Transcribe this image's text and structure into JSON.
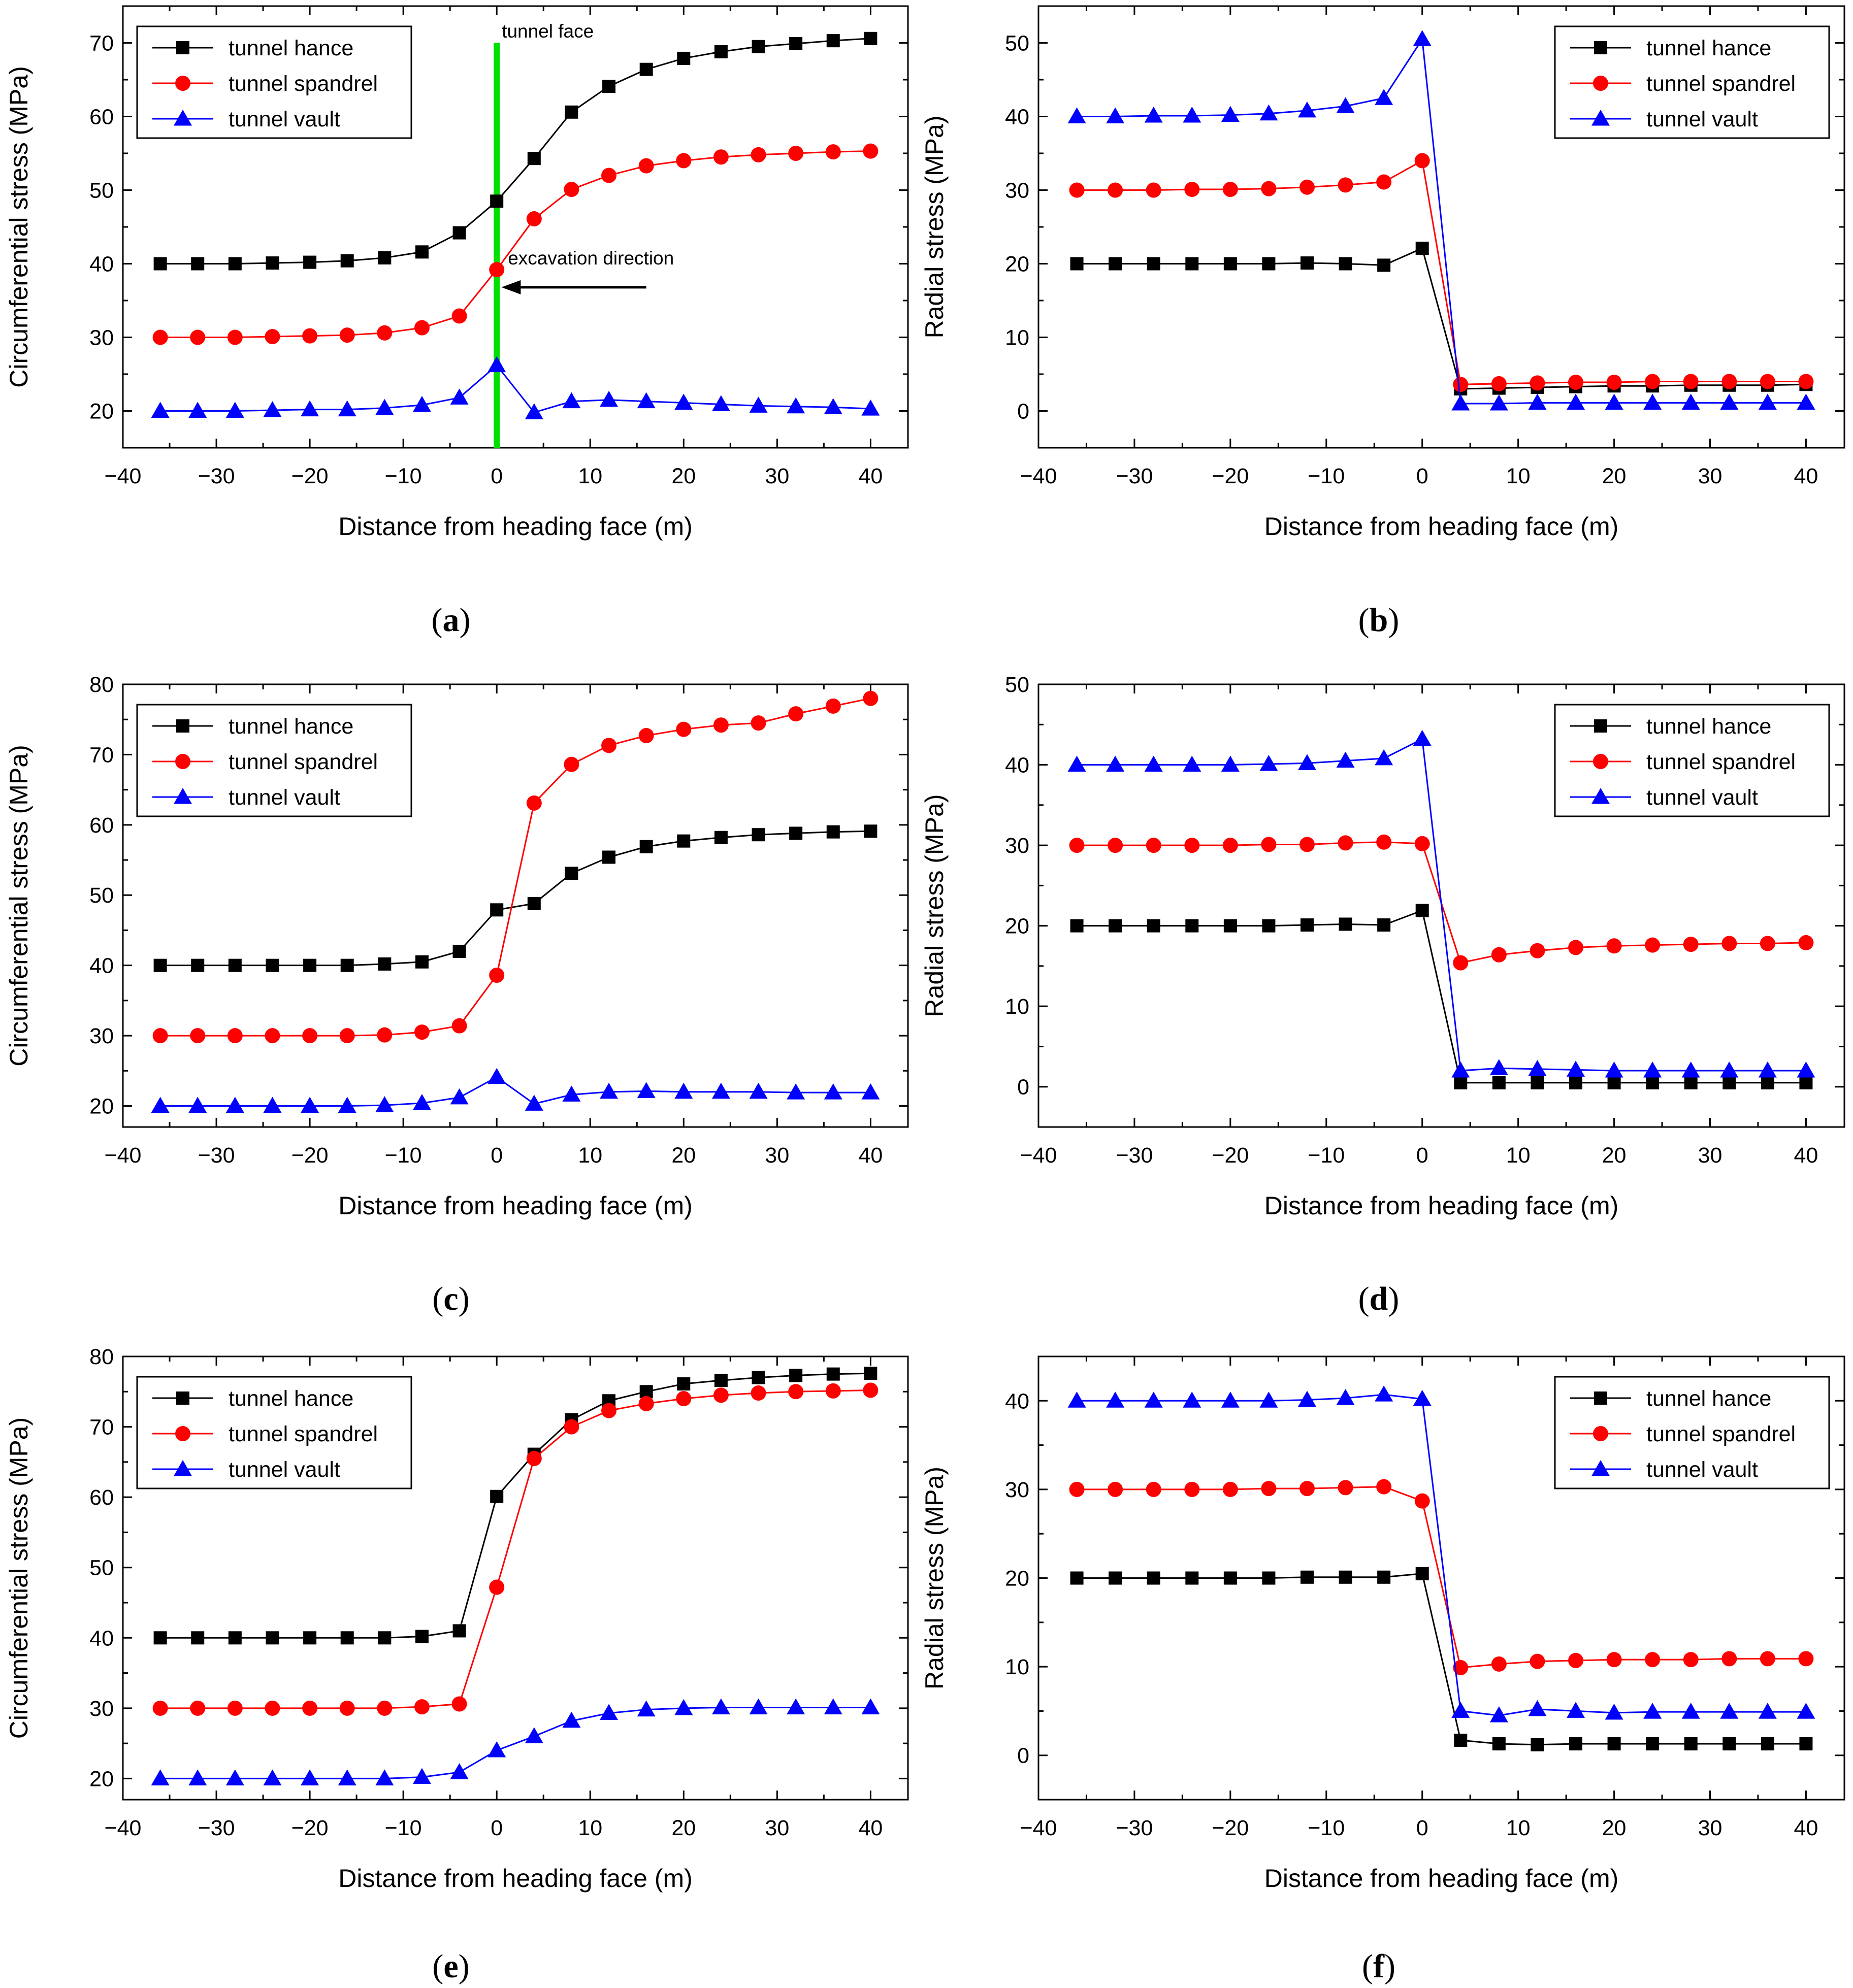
{
  "colors": {
    "hance": "#000000",
    "spandrel": "#ff0000",
    "vault": "#0000ff",
    "tunnel_face_line": "#00e000"
  },
  "chart_data": [
    {
      "id": "a",
      "type": "line",
      "caption": "a",
      "xlabel": "Distance from heading face (m)",
      "ylabel": "Circumferential stress (MPa)",
      "xlim": [
        -40,
        44
      ],
      "ylim": [
        15,
        75
      ],
      "xticks": [
        -40,
        -30,
        -20,
        -10,
        0,
        10,
        20,
        30,
        40
      ],
      "xtick_labels": [
        "−40",
        "−30",
        "−20",
        "−10",
        "0",
        "10",
        "20",
        "30",
        "40"
      ],
      "yticks": [
        20,
        30,
        40,
        50,
        60,
        70
      ],
      "ytick_labels": [
        "20",
        "30",
        "40",
        "50",
        "60",
        "70"
      ],
      "legend": "top-left",
      "x": [
        -36,
        -32,
        -28,
        -24,
        -20,
        -16,
        -12,
        -8,
        -4,
        0,
        4,
        8,
        12,
        16,
        20,
        24,
        28,
        32,
        36,
        40
      ],
      "series": [
        {
          "name": "tunnel hance",
          "marker": "square",
          "color": "#000000",
          "values": [
            40,
            40,
            40,
            40.1,
            40.2,
            40.4,
            40.8,
            41.6,
            44.2,
            48.5,
            54.3,
            60.6,
            64.1,
            66.4,
            67.9,
            68.8,
            69.5,
            69.9,
            70.3,
            70.6
          ]
        },
        {
          "name": "tunnel  spandrel",
          "marker": "circle",
          "color": "#ff0000",
          "values": [
            30,
            30,
            30,
            30.1,
            30.2,
            30.3,
            30.6,
            31.3,
            32.9,
            39.2,
            46.1,
            50.1,
            52,
            53.3,
            54,
            54.5,
            54.8,
            55,
            55.2,
            55.3
          ]
        },
        {
          "name": "tunnel vault",
          "marker": "triangle",
          "color": "#0000ff",
          "values": [
            20,
            20,
            20,
            20.1,
            20.2,
            20.2,
            20.4,
            20.8,
            21.8,
            26.2,
            19.8,
            21.3,
            21.5,
            21.3,
            21.1,
            20.9,
            20.7,
            20.6,
            20.5,
            20.3
          ]
        }
      ],
      "annotations": {
        "tunnel_face_label": "tunnel face",
        "tunnel_face_x": 0,
        "tunnel_face_ytop": 70,
        "excavation_label": "excavation direction",
        "arrow_from_x": 16,
        "arrow_to_x": 0.5,
        "arrow_y": 36.8
      }
    },
    {
      "id": "b",
      "type": "line",
      "caption": "b",
      "xlabel": "Distance from heading face (m)",
      "ylabel": "Radial stress (MPa)",
      "xlim": [
        -40,
        44
      ],
      "ylim": [
        -5,
        55
      ],
      "xticks": [
        -40,
        -30,
        -20,
        -10,
        0,
        10,
        20,
        30,
        40
      ],
      "xtick_labels": [
        "−40",
        "−30",
        "−20",
        "−10",
        "0",
        "10",
        "20",
        "30",
        "40"
      ],
      "yticks": [
        0,
        10,
        20,
        30,
        40,
        50
      ],
      "ytick_labels": [
        "0",
        "10",
        "20",
        "30",
        "40",
        "50"
      ],
      "legend": "top-right",
      "x": [
        -36,
        -32,
        -28,
        -24,
        -20,
        -16,
        -12,
        -8,
        -4,
        0,
        4,
        8,
        12,
        16,
        20,
        24,
        28,
        32,
        36,
        40
      ],
      "series": [
        {
          "name": "tunnel hance",
          "marker": "square",
          "color": "#000000",
          "values": [
            20,
            20,
            20,
            20,
            20,
            20,
            20.1,
            20,
            19.8,
            22.1,
            3,
            3.1,
            3.2,
            3.3,
            3.4,
            3.4,
            3.5,
            3.5,
            3.5,
            3.6
          ]
        },
        {
          "name": "tunnel  spandrel",
          "marker": "circle",
          "color": "#ff0000",
          "values": [
            30,
            30,
            30,
            30.1,
            30.1,
            30.2,
            30.4,
            30.7,
            31.1,
            34,
            3.6,
            3.7,
            3.8,
            3.9,
            3.9,
            4,
            4,
            4,
            4,
            4
          ]
        },
        {
          "name": "tunnel vault",
          "marker": "triangle",
          "color": "#0000ff",
          "values": [
            40,
            40,
            40.1,
            40.1,
            40.2,
            40.4,
            40.8,
            41.4,
            42.5,
            50.5,
            1,
            1,
            1.1,
            1.1,
            1.1,
            1.1,
            1.1,
            1.1,
            1.1,
            1.1
          ]
        }
      ]
    },
    {
      "id": "c",
      "type": "line",
      "caption": "c",
      "xlabel": "Distance from heading face (m)",
      "ylabel": "Circumferential stress (MPa)",
      "xlim": [
        -40,
        44
      ],
      "ylim": [
        17,
        80
      ],
      "xticks": [
        -40,
        -30,
        -20,
        -10,
        0,
        10,
        20,
        30,
        40
      ],
      "xtick_labels": [
        "−40",
        "−30",
        "−20",
        "−10",
        "0",
        "10",
        "20",
        "30",
        "40"
      ],
      "yticks": [
        20,
        30,
        40,
        50,
        60,
        70,
        80
      ],
      "ytick_labels": [
        "20",
        "30",
        "40",
        "50",
        "60",
        "70",
        "80"
      ],
      "legend": "top-left",
      "x": [
        -36,
        -32,
        -28,
        -24,
        -20,
        -16,
        -12,
        -8,
        -4,
        0,
        4,
        8,
        12,
        16,
        20,
        24,
        28,
        32,
        36,
        40
      ],
      "series": [
        {
          "name": "tunnel hance",
          "marker": "square",
          "color": "#000000",
          "values": [
            40,
            40,
            40,
            40,
            40,
            40,
            40.2,
            40.5,
            42,
            47.9,
            48.8,
            53.1,
            55.4,
            56.9,
            57.7,
            58.2,
            58.6,
            58.8,
            59,
            59.1
          ]
        },
        {
          "name": "tunnel  spandrel",
          "marker": "circle",
          "color": "#ff0000",
          "values": [
            30,
            30,
            30,
            30,
            30,
            30,
            30.1,
            30.5,
            31.4,
            38.6,
            63.1,
            68.6,
            71.3,
            72.7,
            73.6,
            74.2,
            74.5,
            75.8,
            76.9,
            78
          ]
        },
        {
          "name": "tunnel vault",
          "marker": "triangle",
          "color": "#0000ff",
          "values": [
            20,
            20,
            20,
            20,
            20,
            20,
            20.1,
            20.4,
            21.2,
            24.1,
            20.3,
            21.6,
            22,
            22.1,
            22,
            22,
            22,
            21.9,
            21.9,
            21.9
          ]
        }
      ]
    },
    {
      "id": "d",
      "type": "line",
      "caption": "d",
      "xlabel": "Distance from heading face (m)",
      "ylabel": "Radial stress (MPa)",
      "xlim": [
        -40,
        44
      ],
      "ylim": [
        -5,
        50
      ],
      "xticks": [
        -40,
        -30,
        -20,
        -10,
        0,
        10,
        20,
        30,
        40
      ],
      "xtick_labels": [
        "−40",
        "−30",
        "−20",
        "−10",
        "0",
        "10",
        "20",
        "30",
        "40"
      ],
      "yticks": [
        0,
        10,
        20,
        30,
        40,
        50
      ],
      "ytick_labels": [
        "0",
        "10",
        "20",
        "30",
        "40",
        "50"
      ],
      "legend": "top-right",
      "x": [
        -36,
        -32,
        -28,
        -24,
        -20,
        -16,
        -12,
        -8,
        -4,
        0,
        4,
        8,
        12,
        16,
        20,
        24,
        28,
        32,
        36,
        40
      ],
      "series": [
        {
          "name": "tunnel hance",
          "marker": "square",
          "color": "#000000",
          "values": [
            20,
            20,
            20,
            20,
            20,
            20,
            20.1,
            20.2,
            20.1,
            21.9,
            0.5,
            0.5,
            0.5,
            0.5,
            0.5,
            0.5,
            0.5,
            0.5,
            0.5,
            0.5
          ]
        },
        {
          "name": "tunnel  spandrel",
          "marker": "circle",
          "color": "#ff0000",
          "values": [
            30,
            30,
            30,
            30,
            30,
            30.1,
            30.1,
            30.3,
            30.4,
            30.2,
            15.4,
            16.4,
            16.9,
            17.3,
            17.5,
            17.6,
            17.7,
            17.8,
            17.8,
            17.9
          ]
        },
        {
          "name": "tunnel vault",
          "marker": "triangle",
          "color": "#0000ff",
          "values": [
            40,
            40,
            40,
            40,
            40,
            40.1,
            40.2,
            40.5,
            40.8,
            43.2,
            2,
            2.3,
            2.2,
            2.1,
            2,
            2,
            2,
            2,
            2,
            2
          ]
        }
      ]
    },
    {
      "id": "e",
      "type": "line",
      "caption": "e",
      "xlabel": "Distance from heading face (m)",
      "ylabel": "Circumferential stress (MPa)",
      "xlim": [
        -40,
        44
      ],
      "ylim": [
        17,
        80
      ],
      "xticks": [
        -40,
        -30,
        -20,
        -10,
        0,
        10,
        20,
        30,
        40
      ],
      "xtick_labels": [
        "−40",
        "−30",
        "−20",
        "−10",
        "0",
        "10",
        "20",
        "30",
        "40"
      ],
      "yticks": [
        20,
        30,
        40,
        50,
        60,
        70,
        80
      ],
      "ytick_labels": [
        "20",
        "30",
        "40",
        "50",
        "60",
        "70",
        "80"
      ],
      "legend": "top-left",
      "x": [
        -36,
        -32,
        -28,
        -24,
        -20,
        -16,
        -12,
        -8,
        -4,
        0,
        4,
        8,
        12,
        16,
        20,
        24,
        28,
        32,
        36,
        40
      ],
      "series": [
        {
          "name": "tunnel hance",
          "marker": "square",
          "color": "#000000",
          "values": [
            40,
            40,
            40,
            40,
            40,
            40,
            40,
            40.2,
            41,
            60.1,
            66.1,
            71,
            73.7,
            75,
            76.1,
            76.6,
            77,
            77.3,
            77.5,
            77.6
          ]
        },
        {
          "name": "tunnel  spandrel",
          "marker": "circle",
          "color": "#ff0000",
          "values": [
            30,
            30,
            30,
            30,
            30,
            30,
            30,
            30.2,
            30.6,
            47.2,
            65.5,
            70,
            72.3,
            73.3,
            74,
            74.5,
            74.8,
            75,
            75.1,
            75.2
          ]
        },
        {
          "name": "tunnel vault",
          "marker": "triangle",
          "color": "#0000ff",
          "values": [
            20,
            20,
            20,
            20,
            20,
            20,
            20,
            20.2,
            20.9,
            24,
            26,
            28.2,
            29.3,
            29.8,
            30,
            30.1,
            30.1,
            30.1,
            30.1,
            30.1
          ]
        }
      ]
    },
    {
      "id": "f",
      "type": "line",
      "caption": "f",
      "xlabel": "Distance from heading face (m)",
      "ylabel": "Radial stress (MPa)",
      "xlim": [
        -40,
        44
      ],
      "ylim": [
        -5,
        45
      ],
      "xticks": [
        -40,
        -30,
        -20,
        -10,
        0,
        10,
        20,
        30,
        40
      ],
      "xtick_labels": [
        "−40",
        "−30",
        "−20",
        "−10",
        "0",
        "10",
        "20",
        "30",
        "40"
      ],
      "yticks": [
        0,
        10,
        20,
        30,
        40
      ],
      "ytick_labels": [
        "0",
        "10",
        "20",
        "30",
        "40"
      ],
      "legend": "top-right",
      "x": [
        -36,
        -32,
        -28,
        -24,
        -20,
        -16,
        -12,
        -8,
        -4,
        0,
        4,
        8,
        12,
        16,
        20,
        24,
        28,
        32,
        36,
        40
      ],
      "series": [
        {
          "name": "tunnel hance",
          "marker": "square",
          "color": "#000000",
          "values": [
            20,
            20,
            20,
            20,
            20,
            20,
            20.1,
            20.1,
            20.1,
            20.5,
            1.7,
            1.3,
            1.2,
            1.3,
            1.3,
            1.3,
            1.3,
            1.3,
            1.3,
            1.3
          ]
        },
        {
          "name": "tunnel  spandrel",
          "marker": "circle",
          "color": "#ff0000",
          "values": [
            30,
            30,
            30,
            30,
            30,
            30.1,
            30.1,
            30.2,
            30.3,
            28.7,
            9.9,
            10.3,
            10.6,
            10.7,
            10.8,
            10.8,
            10.8,
            10.9,
            10.9,
            10.9
          ]
        },
        {
          "name": "tunnel vault",
          "marker": "triangle",
          "color": "#0000ff",
          "values": [
            40,
            40,
            40,
            40,
            40,
            40,
            40.1,
            40.3,
            40.7,
            40.2,
            5,
            4.5,
            5.2,
            5,
            4.8,
            4.9,
            4.9,
            4.9,
            4.9,
            4.9
          ]
        }
      ]
    }
  ]
}
